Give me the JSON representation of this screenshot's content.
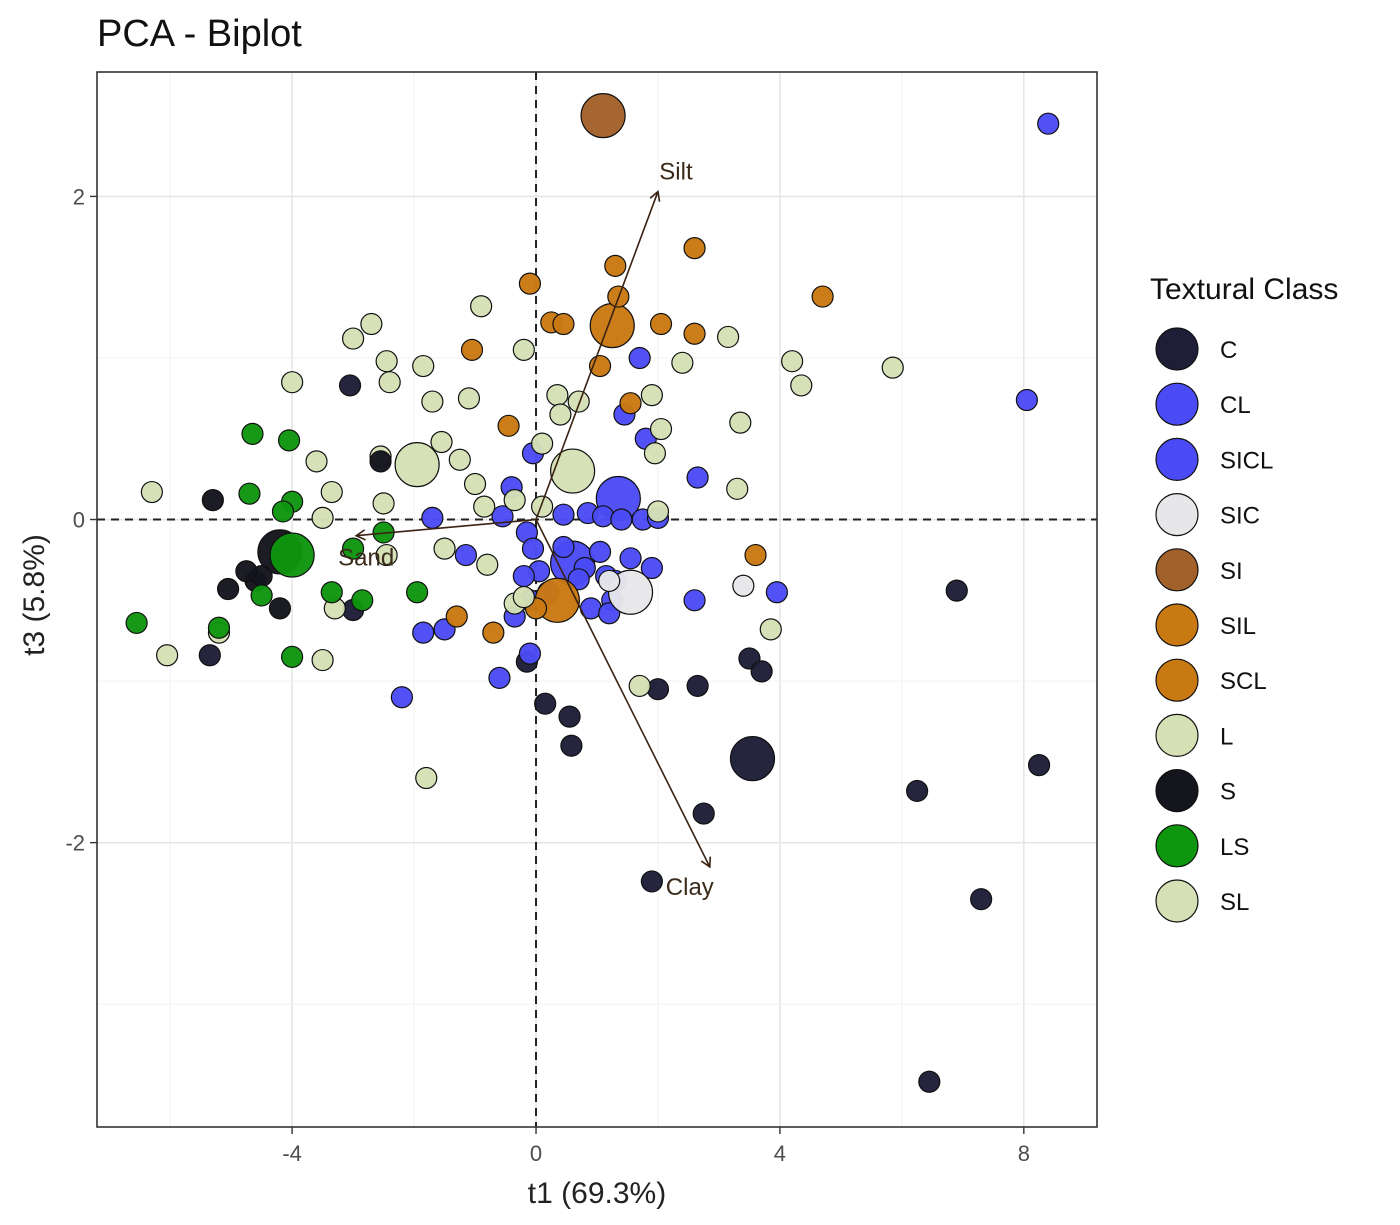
{
  "chart_data": {
    "type": "scatter",
    "title": "PCA - Biplot",
    "xlabel": "t1 (69.3%)",
    "ylabel": "t3 (5.8%)",
    "xlim": [
      -7.2,
      9.2
    ],
    "ylim": [
      -3.76,
      2.77
    ],
    "x_ticks": [
      -4,
      0,
      4,
      8
    ],
    "y_ticks": [
      2,
      0,
      -2
    ],
    "x_tick_labels": [
      "-4",
      "0",
      "4",
      "8"
    ],
    "y_tick_labels": [
      "2",
      "0",
      "-2"
    ],
    "grid": true,
    "reference_lines": {
      "x": 0,
      "y": 0,
      "style": "dashed"
    },
    "legend": {
      "title": "Textural Class",
      "position": "right",
      "entries": [
        {
          "label": "C",
          "color": "#1e1e38"
        },
        {
          "label": "CL",
          "color": "#4b4bf5"
        },
        {
          "label": "SICL",
          "color": "#4b4bf5"
        },
        {
          "label": "SIC",
          "color": "#e7e7ea"
        },
        {
          "label": "SI",
          "color": "#a2612a"
        },
        {
          "label": "SIL",
          "color": "#c97912"
        },
        {
          "label": "SCL",
          "color": "#c97912"
        },
        {
          "label": "L",
          "color": "#d5e0b5"
        },
        {
          "label": "S",
          "color": "#15151e"
        },
        {
          "label": "LS",
          "color": "#0f960f"
        },
        {
          "label": "SL",
          "color": "#d5e0b5"
        }
      ]
    },
    "loadings": [
      {
        "label": "Silt",
        "x": 2.0,
        "y": 2.03
      },
      {
        "label": "Sand",
        "x": -2.95,
        "y": -0.1
      },
      {
        "label": "Clay",
        "x": 2.85,
        "y": -2.15
      }
    ],
    "series": [
      {
        "name": "C",
        "color": "#1e1e38",
        "points": [
          [
            -0.15,
            -0.88
          ],
          [
            0.15,
            -1.14
          ],
          [
            0.55,
            -1.22
          ],
          [
            0.58,
            -1.4
          ],
          [
            1.9,
            -2.24
          ],
          [
            2.0,
            -1.05
          ],
          [
            2.65,
            -1.03
          ],
          [
            2.75,
            -1.82
          ],
          [
            3.5,
            -0.86
          ],
          [
            3.7,
            -0.94
          ],
          [
            3.55,
            -1.48,
            "L"
          ],
          [
            6.25,
            -1.68
          ],
          [
            6.45,
            -3.48
          ],
          [
            6.9,
            -0.44
          ],
          [
            7.3,
            -2.35
          ],
          [
            8.25,
            -1.52
          ],
          [
            -5.35,
            -0.84
          ],
          [
            -3.0,
            -0.56
          ],
          [
            -3.05,
            0.83
          ]
        ]
      },
      {
        "name": "CL",
        "color": "#4b4bf5",
        "points": [
          [
            8.4,
            2.45
          ],
          [
            8.05,
            0.74
          ],
          [
            1.7,
            1.0
          ],
          [
            1.45,
            0.65
          ],
          [
            1.8,
            0.5
          ],
          [
            2.65,
            0.26
          ],
          [
            1.35,
            0.13,
            "L"
          ],
          [
            0.6,
            -0.27,
            "L"
          ],
          [
            0.45,
            -0.17
          ],
          [
            0.8,
            -0.3
          ],
          [
            1.05,
            -0.2
          ],
          [
            1.15,
            -0.35
          ],
          [
            1.3,
            -0.38
          ],
          [
            1.55,
            -0.24
          ],
          [
            1.9,
            -0.3
          ],
          [
            0.9,
            -0.55
          ],
          [
            1.25,
            -0.5
          ],
          [
            1.2,
            -0.58
          ],
          [
            -0.55,
            0.02
          ],
          [
            -0.4,
            0.2
          ],
          [
            -0.05,
            0.41
          ],
          [
            0.45,
            0.03
          ],
          [
            0.85,
            0.04
          ],
          [
            1.1,
            0.02
          ],
          [
            1.4,
            0.0
          ],
          [
            1.75,
            0.0
          ],
          [
            2.0,
            0.01
          ],
          [
            2.6,
            -0.5
          ],
          [
            3.95,
            -0.45
          ],
          [
            -0.15,
            -0.08
          ],
          [
            -0.05,
            -0.18
          ],
          [
            0.05,
            -0.32
          ],
          [
            0.2,
            -0.45
          ],
          [
            -0.2,
            -0.35
          ],
          [
            -0.1,
            -0.5
          ],
          [
            -0.35,
            -0.6
          ],
          [
            -0.6,
            -0.98
          ],
          [
            -0.1,
            -0.83
          ],
          [
            -1.15,
            -0.22
          ],
          [
            -1.5,
            -0.68
          ],
          [
            -1.85,
            -0.7
          ],
          [
            -2.2,
            -1.1
          ],
          [
            -1.7,
            0.01
          ],
          [
            0.7,
            -0.37
          ]
        ]
      },
      {
        "name": "SIC",
        "color": "#e7e7ea",
        "points": [
          [
            1.55,
            -0.45,
            "L"
          ],
          [
            1.2,
            -0.38
          ],
          [
            3.4,
            -0.41
          ]
        ]
      },
      {
        "name": "SI",
        "color": "#a2612a",
        "points": [
          [
            1.1,
            2.5,
            "L"
          ]
        ]
      },
      {
        "name": "SIL",
        "color": "#c97912",
        "points": [
          [
            1.25,
            1.2,
            "L"
          ],
          [
            1.3,
            1.57
          ],
          [
            1.35,
            1.38
          ],
          [
            2.6,
            1.68
          ],
          [
            4.7,
            1.38
          ],
          [
            2.05,
            1.21
          ],
          [
            2.6,
            1.15
          ],
          [
            0.25,
            1.22
          ],
          [
            0.45,
            1.21
          ],
          [
            -0.1,
            1.46
          ],
          [
            -1.05,
            1.05
          ],
          [
            1.05,
            0.95
          ],
          [
            1.55,
            0.72
          ],
          [
            -0.45,
            0.58
          ],
          [
            0.35,
            -0.5,
            "L"
          ],
          [
            0.0,
            -0.55
          ],
          [
            -0.7,
            -0.7
          ],
          [
            -1.3,
            -0.6
          ],
          [
            3.6,
            -0.22
          ]
        ]
      },
      {
        "name": "L",
        "color": "#d5e0b5",
        "points": [
          [
            -1.95,
            0.34,
            "L"
          ],
          [
            0.6,
            0.3,
            "L"
          ],
          [
            -0.9,
            1.32
          ],
          [
            -2.7,
            1.21
          ],
          [
            -3.0,
            1.12
          ],
          [
            -2.45,
            0.98
          ],
          [
            -1.85,
            0.95
          ],
          [
            -4.0,
            0.85
          ],
          [
            -2.4,
            0.85
          ],
          [
            -1.7,
            0.73
          ],
          [
            -1.1,
            0.75
          ],
          [
            -0.2,
            1.05
          ],
          [
            2.4,
            0.97
          ],
          [
            3.15,
            1.13
          ],
          [
            4.2,
            0.98
          ],
          [
            4.35,
            0.83
          ],
          [
            5.85,
            0.94
          ],
          [
            0.35,
            0.77
          ],
          [
            0.7,
            0.73
          ],
          [
            1.9,
            0.77
          ],
          [
            0.4,
            0.65
          ],
          [
            2.05,
            0.56
          ],
          [
            3.35,
            0.6
          ],
          [
            1.95,
            0.41
          ],
          [
            0.1,
            0.47
          ],
          [
            -1.55,
            0.48
          ],
          [
            -1.25,
            0.37
          ],
          [
            -3.6,
            0.36
          ],
          [
            -2.55,
            0.39
          ],
          [
            -1.0,
            0.22
          ],
          [
            -0.85,
            0.08
          ],
          [
            -0.35,
            0.12
          ],
          [
            0.1,
            0.08
          ],
          [
            -2.5,
            0.1
          ],
          [
            -3.35,
            0.17
          ],
          [
            -3.5,
            0.01
          ],
          [
            -6.3,
            0.17
          ],
          [
            3.3,
            0.19
          ],
          [
            2.0,
            0.05
          ],
          [
            -1.5,
            -0.18
          ],
          [
            -0.8,
            -0.28
          ],
          [
            -0.35,
            -0.52
          ],
          [
            -2.45,
            -0.22
          ],
          [
            -3.3,
            -0.55
          ],
          [
            -5.2,
            -0.7
          ],
          [
            -6.05,
            -0.84
          ],
          [
            -3.5,
            -0.87
          ],
          [
            1.7,
            -1.03
          ],
          [
            3.85,
            -0.68
          ],
          [
            -1.8,
            -1.6
          ],
          [
            -0.2,
            -0.48
          ]
        ]
      },
      {
        "name": "S",
        "color": "#15151e",
        "points": [
          [
            -4.2,
            -0.2,
            "L"
          ],
          [
            -4.6,
            -0.38
          ],
          [
            -4.5,
            -0.35
          ],
          [
            -4.75,
            -0.32
          ],
          [
            -5.05,
            -0.43
          ],
          [
            -5.3,
            0.12
          ],
          [
            -2.55,
            0.36
          ],
          [
            -4.2,
            -0.55
          ]
        ]
      },
      {
        "name": "LS",
        "color": "#0f960f",
        "points": [
          [
            -4.0,
            -0.22,
            "L"
          ],
          [
            -4.65,
            0.53
          ],
          [
            -4.05,
            0.49
          ],
          [
            -4.7,
            0.16
          ],
          [
            -4.0,
            0.11
          ],
          [
            -4.15,
            0.05
          ],
          [
            -2.5,
            -0.08
          ],
          [
            -3.0,
            -0.18
          ],
          [
            -3.35,
            -0.45
          ],
          [
            -2.85,
            -0.5
          ],
          [
            -4.5,
            -0.47
          ],
          [
            -5.2,
            -0.67
          ],
          [
            -6.55,
            -0.64
          ],
          [
            -4.0,
            -0.85
          ],
          [
            -1.95,
            -0.45
          ]
        ]
      }
    ]
  }
}
